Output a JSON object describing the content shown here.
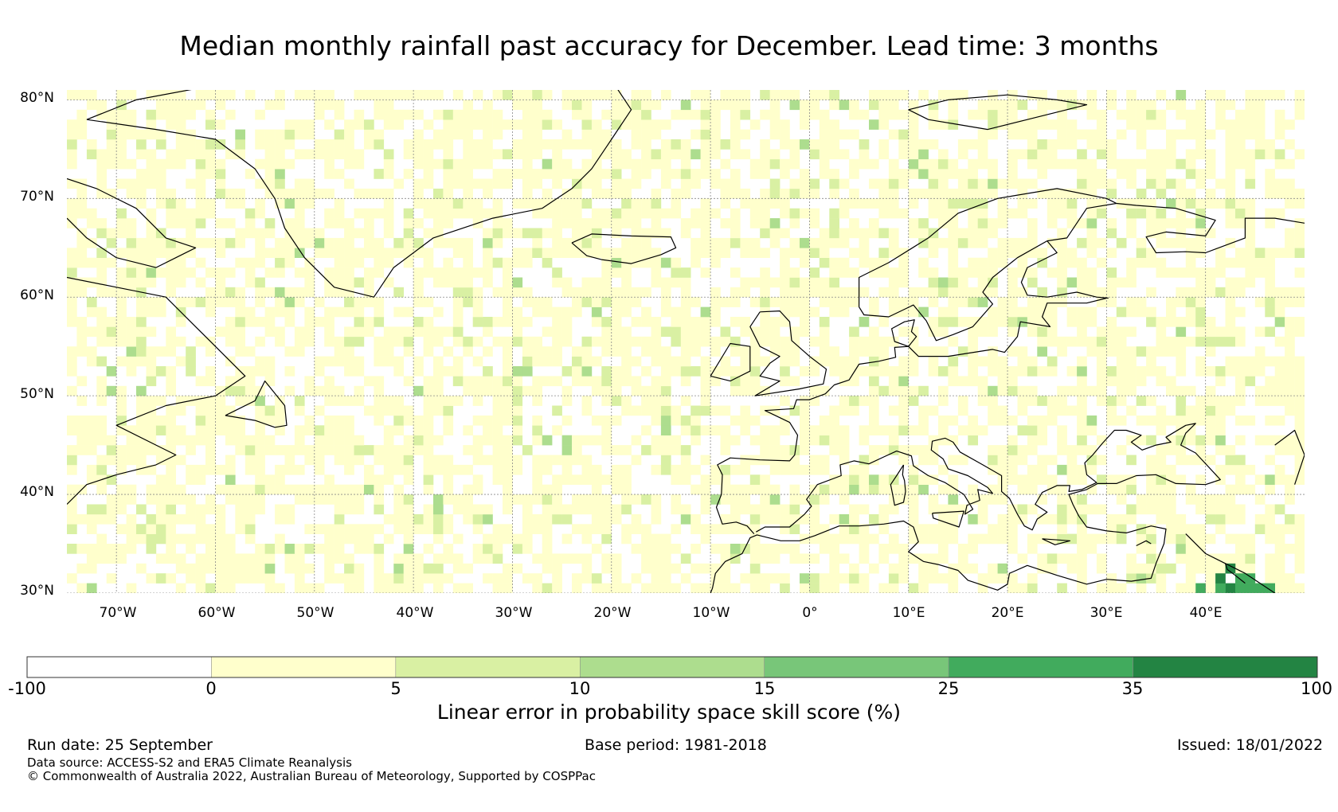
{
  "title": "Median monthly rainfall past accuracy for December. Lead time: 3 months",
  "map": {
    "lat_range": [
      30,
      81
    ],
    "lon_range": [
      -75,
      50
    ],
    "lat_ticks": [
      "80°N",
      "70°N",
      "60°N",
      "50°N",
      "40°N",
      "30°N"
    ],
    "lon_ticks": [
      "70°W",
      "60°W",
      "50°W",
      "40°W",
      "30°W",
      "20°W",
      "10°W",
      "0°",
      "10°E",
      "20°E",
      "30°E",
      "40°E"
    ],
    "high_skill_region": "Eastern Mediterranean / Middle East, near 40-45°E, 30-33°N"
  },
  "colorbar": {
    "boundaries": [
      "-100",
      "0",
      "5",
      "10",
      "15",
      "25",
      "35",
      "100"
    ],
    "colors": [
      "#ffffff",
      "#ffffcc",
      "#d9f0a3",
      "#addd8e",
      "#78c679",
      "#41ab5d",
      "#238443"
    ],
    "label": "Linear error in probability space skill score (%)"
  },
  "footer": {
    "run_date": "Run date: 25 September",
    "base_period": "Base period: 1981-2018",
    "issued": "Issued: 18/01/2022",
    "data_source": "Data source: ACCESS-S2 and ERA5 Climate Reanalysis",
    "copyright": "© Commonwealth of Australia 2022, Australian Bureau of Meteorology, Supported by COSPPac"
  }
}
